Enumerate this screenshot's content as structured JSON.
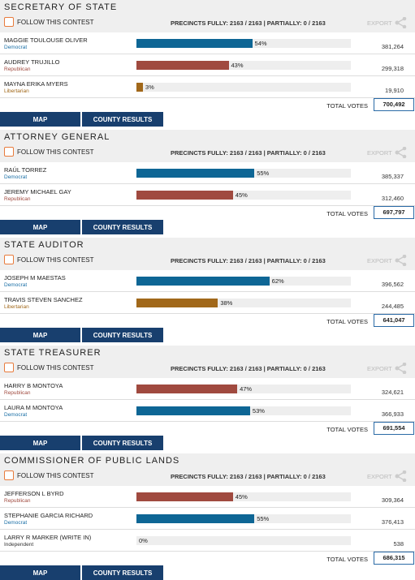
{
  "contests": [
    {
      "title": "SECRETARY OF STATE",
      "follow": "FOLLOW THIS CONTEST",
      "precincts": "PRECINCTS FULLY: 2163 / 2163 | PARTIALLY: 0 / 2163",
      "export": "EXPORT",
      "candidates": [
        {
          "name": "MAGGIE TOULOUSE OLIVER",
          "party": "Democrat",
          "color": "#0e6695",
          "party_color": "#1a6fa6",
          "pct": 54,
          "pct_label": "54%",
          "votes": "381,264"
        },
        {
          "name": "AUDREY TRUJILLO",
          "party": "Republican",
          "color": "#a04a3f",
          "party_color": "#a04a3f",
          "pct": 43,
          "pct_label": "43%",
          "votes": "299,318"
        },
        {
          "name": "MAYNA ERIKA MYERS",
          "party": "Libertarian",
          "color": "#a1681a",
          "party_color": "#a1681a",
          "pct": 3,
          "pct_label": "3%",
          "votes": "19,910"
        }
      ],
      "total_label": "TOTAL VOTES",
      "total": "700,492",
      "buttons": [
        "MAP",
        "COUNTY RESULTS"
      ]
    },
    {
      "title": "ATTORNEY GENERAL",
      "follow": "FOLLOW THIS CONTEST",
      "precincts": "PRECINCTS FULLY: 2163 / 2163 | PARTIALLY: 0 / 2163",
      "export": "EXPORT",
      "candidates": [
        {
          "name": "RAÚL TORREZ",
          "party": "Democrat",
          "color": "#0e6695",
          "party_color": "#1a6fa6",
          "pct": 55,
          "pct_label": "55%",
          "votes": "385,337"
        },
        {
          "name": "JEREMY MICHAEL GAY",
          "party": "Republican",
          "color": "#a04a3f",
          "party_color": "#a04a3f",
          "pct": 45,
          "pct_label": "45%",
          "votes": "312,460"
        }
      ],
      "total_label": "TOTAL VOTES",
      "total": "697,797",
      "buttons": [
        "MAP",
        "COUNTY RESULTS"
      ]
    },
    {
      "title": "STATE AUDITOR",
      "follow": "FOLLOW THIS CONTEST",
      "precincts": "PRECINCTS FULLY: 2163 / 2163 | PARTIALLY: 0 / 2163",
      "export": "EXPORT",
      "candidates": [
        {
          "name": "JOSEPH M MAESTAS",
          "party": "Democrat",
          "color": "#0e6695",
          "party_color": "#1a6fa6",
          "pct": 62,
          "pct_label": "62%",
          "votes": "396,562"
        },
        {
          "name": "TRAVIS STEVEN SANCHEZ",
          "party": "Libertarian",
          "color": "#a1681a",
          "party_color": "#a1681a",
          "pct": 38,
          "pct_label": "38%",
          "votes": "244,485"
        }
      ],
      "total_label": "TOTAL VOTES",
      "total": "641,047",
      "buttons": [
        "MAP",
        "COUNTY RESULTS"
      ]
    },
    {
      "title": "STATE TREASURER",
      "follow": "FOLLOW THIS CONTEST",
      "precincts": "PRECINCTS FULLY: 2163 / 2163 | PARTIALLY: 0 / 2163",
      "export": "EXPORT",
      "candidates": [
        {
          "name": "HARRY B MONTOYA",
          "party": "Republican",
          "color": "#a04a3f",
          "party_color": "#a04a3f",
          "pct": 47,
          "pct_label": "47%",
          "votes": "324,621"
        },
        {
          "name": "LAURA M MONTOYA",
          "party": "Democrat",
          "color": "#0e6695",
          "party_color": "#1a6fa6",
          "pct": 53,
          "pct_label": "53%",
          "votes": "366,933"
        }
      ],
      "total_label": "TOTAL VOTES",
      "total": "691,554",
      "buttons": [
        "MAP",
        "COUNTY RESULTS"
      ]
    },
    {
      "title": "COMMISSIONER OF PUBLIC LANDS",
      "follow": "FOLLOW THIS CONTEST",
      "precincts": "PRECINCTS FULLY: 2163 / 2163 | PARTIALLY: 0 / 2163",
      "export": "EXPORT",
      "candidates": [
        {
          "name": "JEFFERSON L BYRD",
          "party": "Republican",
          "color": "#a04a3f",
          "party_color": "#a04a3f",
          "pct": 45,
          "pct_label": "45%",
          "votes": "309,364"
        },
        {
          "name": "STEPHANIE GARCIA RICHARD",
          "party": "Democrat",
          "color": "#0e6695",
          "party_color": "#1a6fa6",
          "pct": 55,
          "pct_label": "55%",
          "votes": "376,413"
        },
        {
          "name": "LARRY R MARKER (WRITE IN)",
          "party": "Independent",
          "color": "#555555",
          "party_color": "#333333",
          "pct": 0,
          "pct_label": "0%",
          "votes": "538"
        }
      ],
      "total_label": "TOTAL VOTES",
      "total": "686,315",
      "buttons": [
        "MAP",
        "COUNTY RESULTS"
      ]
    }
  ]
}
